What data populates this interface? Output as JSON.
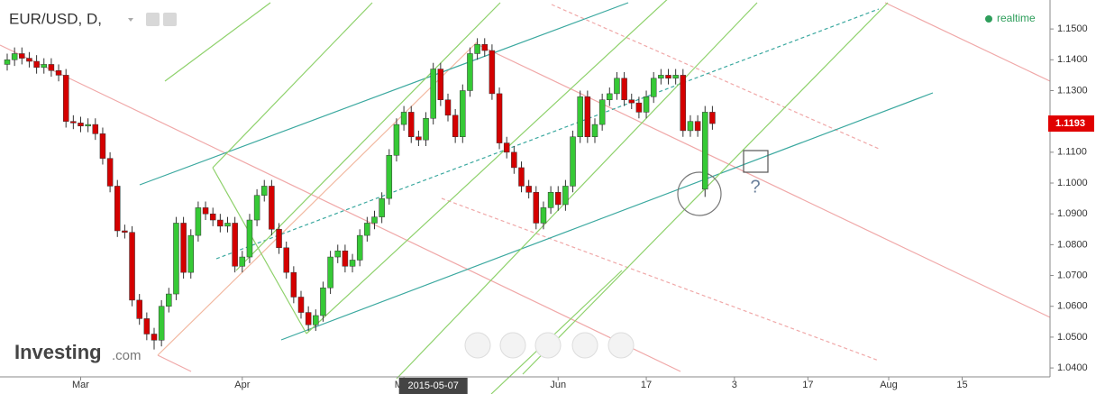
{
  "chart_data": {
    "type": "candlestick",
    "title": "EUR/USD, D,",
    "status": "realtime",
    "brand": "Investing",
    "brand_suffix": ".com",
    "annotation": "?",
    "up_color": "#36c936",
    "down_color": "#d40000",
    "x": [
      "2015-02-16",
      "2015-02-17",
      "2015-02-18",
      "2015-02-19",
      "2015-02-20",
      "2015-02-23",
      "2015-02-24",
      "2015-02-25",
      "2015-02-26",
      "2015-02-27",
      "2015-03-02",
      "2015-03-03",
      "2015-03-04",
      "2015-03-05",
      "2015-03-06",
      "2015-03-09",
      "2015-03-10",
      "2015-03-11",
      "2015-03-12",
      "2015-03-13",
      "2015-03-16",
      "2015-03-17",
      "2015-03-18",
      "2015-03-19",
      "2015-03-20",
      "2015-03-23",
      "2015-03-24",
      "2015-03-25",
      "2015-03-26",
      "2015-03-27",
      "2015-03-30",
      "2015-03-31",
      "2015-04-01",
      "2015-04-02",
      "2015-04-03",
      "2015-04-06",
      "2015-04-07",
      "2015-04-08",
      "2015-04-09",
      "2015-04-10",
      "2015-04-13",
      "2015-04-14",
      "2015-04-15",
      "2015-04-16",
      "2015-04-17",
      "2015-04-20",
      "2015-04-21",
      "2015-04-22",
      "2015-04-23",
      "2015-04-24",
      "2015-04-27",
      "2015-04-28",
      "2015-04-29",
      "2015-04-30",
      "2015-05-01",
      "2015-05-04",
      "2015-05-05",
      "2015-05-06",
      "2015-05-07",
      "2015-05-08",
      "2015-05-11",
      "2015-05-12",
      "2015-05-13",
      "2015-05-14",
      "2015-05-15",
      "2015-05-18",
      "2015-05-19",
      "2015-05-20",
      "2015-05-21",
      "2015-05-22",
      "2015-05-25",
      "2015-05-26",
      "2015-05-27",
      "2015-05-28",
      "2015-05-29",
      "2015-06-01",
      "2015-06-02",
      "2015-06-03",
      "2015-06-04",
      "2015-06-05",
      "2015-06-08",
      "2015-06-09",
      "2015-06-10",
      "2015-06-11",
      "2015-06-12",
      "2015-06-15",
      "2015-06-16",
      "2015-06-17",
      "2015-06-18",
      "2015-06-19",
      "2015-06-22",
      "2015-06-23",
      "2015-06-24",
      "2015-06-25",
      "2015-06-26",
      "2015-06-29",
      "2015-06-30"
    ],
    "open": [
      1.1385,
      1.14,
      1.142,
      1.1405,
      1.1395,
      1.1375,
      1.1385,
      1.1365,
      1.135,
      1.12,
      1.1195,
      1.1185,
      1.119,
      1.116,
      1.108,
      1.099,
      1.0845,
      1.084,
      1.062,
      1.056,
      1.051,
      1.049,
      1.06,
      1.064,
      1.087,
      1.071,
      1.083,
      1.092,
      1.09,
      1.088,
      1.086,
      1.087,
      1.073,
      1.076,
      1.088,
      1.096,
      1.099,
      1.085,
      1.079,
      1.071,
      1.063,
      1.058,
      1.054,
      1.057,
      1.066,
      1.076,
      1.078,
      1.073,
      1.075,
      1.083,
      1.087,
      1.089,
      1.095,
      1.109,
      1.119,
      1.123,
      1.115,
      1.114,
      1.121,
      1.137,
      1.127,
      1.122,
      1.115,
      1.13,
      1.142,
      1.145,
      1.143,
      1.129,
      1.113,
      1.11,
      1.105,
      1.099,
      1.097,
      1.087,
      1.092,
      1.097,
      1.093,
      1.099,
      1.115,
      1.128,
      1.115,
      1.119,
      1.127,
      1.129,
      1.134,
      1.127,
      1.126,
      1.123,
      1.128,
      1.134,
      1.135,
      1.134,
      1.135,
      1.117,
      1.12,
      1.098,
      1.123
    ],
    "high": [
      1.142,
      1.144,
      1.144,
      1.1425,
      1.1415,
      1.1405,
      1.1405,
      1.1385,
      1.137,
      1.122,
      1.1215,
      1.121,
      1.121,
      1.118,
      1.11,
      1.101,
      1.0865,
      1.086,
      1.064,
      1.058,
      1.053,
      1.062,
      1.066,
      1.089,
      1.089,
      1.085,
      1.094,
      1.094,
      1.092,
      1.09,
      1.089,
      1.089,
      1.078,
      1.09,
      1.098,
      1.101,
      1.101,
      1.087,
      1.081,
      1.073,
      1.065,
      1.06,
      1.059,
      1.068,
      1.078,
      1.08,
      1.08,
      1.077,
      1.085,
      1.089,
      1.091,
      1.097,
      1.111,
      1.121,
      1.125,
      1.125,
      1.117,
      1.123,
      1.139,
      1.139,
      1.129,
      1.124,
      1.132,
      1.144,
      1.147,
      1.147,
      1.145,
      1.131,
      1.115,
      1.112,
      1.107,
      1.101,
      1.099,
      1.094,
      1.099,
      1.099,
      1.101,
      1.117,
      1.13,
      1.13,
      1.121,
      1.129,
      1.131,
      1.136,
      1.136,
      1.129,
      1.128,
      1.13,
      1.136,
      1.137,
      1.137,
      1.137,
      1.137,
      1.122,
      1.122,
      1.125,
      1.125
    ],
    "low": [
      1.1365,
      1.138,
      1.1385,
      1.1375,
      1.1355,
      1.1355,
      1.1345,
      1.133,
      1.118,
      1.1175,
      1.1165,
      1.1165,
      1.114,
      1.106,
      1.097,
      1.0825,
      1.082,
      1.06,
      1.054,
      1.049,
      1.046,
      1.047,
      1.058,
      1.062,
      1.069,
      1.069,
      1.081,
      1.088,
      1.086,
      1.084,
      1.084,
      1.071,
      1.071,
      1.074,
      1.086,
      1.094,
      1.083,
      1.077,
      1.069,
      1.061,
      1.056,
      1.052,
      1.052,
      1.055,
      1.064,
      1.074,
      1.071,
      1.071,
      1.073,
      1.081,
      1.085,
      1.087,
      1.093,
      1.107,
      1.117,
      1.113,
      1.112,
      1.112,
      1.119,
      1.125,
      1.12,
      1.113,
      1.113,
      1.128,
      1.14,
      1.141,
      1.127,
      1.111,
      1.108,
      1.103,
      1.097,
      1.095,
      1.085,
      1.085,
      1.09,
      1.091,
      1.091,
      1.097,
      1.113,
      1.113,
      1.113,
      1.117,
      1.125,
      1.127,
      1.125,
      1.124,
      1.121,
      1.121,
      1.126,
      1.132,
      1.132,
      1.132,
      1.115,
      1.115,
      1.115,
      1.0955,
      1.1173
    ],
    "close": [
      1.14,
      1.142,
      1.1405,
      1.1395,
      1.1375,
      1.1385,
      1.1365,
      1.135,
      1.12,
      1.1195,
      1.1185,
      1.119,
      1.116,
      1.108,
      1.099,
      1.0845,
      1.084,
      1.062,
      1.056,
      1.051,
      1.049,
      1.06,
      1.064,
      1.087,
      1.071,
      1.083,
      1.092,
      1.09,
      1.088,
      1.086,
      1.087,
      1.073,
      1.076,
      1.088,
      1.096,
      1.099,
      1.085,
      1.079,
      1.071,
      1.063,
      1.058,
      1.054,
      1.057,
      1.066,
      1.076,
      1.078,
      1.073,
      1.075,
      1.083,
      1.087,
      1.089,
      1.095,
      1.109,
      1.119,
      1.123,
      1.115,
      1.114,
      1.121,
      1.137,
      1.127,
      1.122,
      1.115,
      1.13,
      1.142,
      1.145,
      1.143,
      1.129,
      1.113,
      1.11,
      1.105,
      1.099,
      1.097,
      1.087,
      1.092,
      1.097,
      1.093,
      1.099,
      1.115,
      1.128,
      1.115,
      1.119,
      1.127,
      1.129,
      1.134,
      1.127,
      1.126,
      1.123,
      1.128,
      1.134,
      1.135,
      1.134,
      1.135,
      1.117,
      1.12,
      1.117,
      1.123,
      1.1193
    ],
    "last_price": 1.1193,
    "crosshair_date": "2015-05-07",
    "ylim": [
      1.0371,
      1.1594
    ],
    "yticks": [
      {
        "value": 1.04,
        "label": "1.0400"
      },
      {
        "value": 1.05,
        "label": "1.0500"
      },
      {
        "value": 1.06,
        "label": "1.0600"
      },
      {
        "value": 1.07,
        "label": "1.0700"
      },
      {
        "value": 1.08,
        "label": "1.0800"
      },
      {
        "value": 1.09,
        "label": "1.0900"
      },
      {
        "value": 1.1,
        "label": "1.1000"
      },
      {
        "value": 1.11,
        "label": "1.1100"
      },
      {
        "value": 1.12,
        "label": "1.1200"
      },
      {
        "value": 1.13,
        "label": "1.1300"
      },
      {
        "value": 1.14,
        "label": "1.1400"
      },
      {
        "value": 1.15,
        "label": "1.1500"
      }
    ],
    "xticks": [
      {
        "value": "2015-03-02",
        "label": "Mar"
      },
      {
        "value": "2015-04-01",
        "label": "Apr"
      },
      {
        "value": "2015-05-01",
        "label": "May"
      },
      {
        "value": "2015-06-01",
        "label": "Jun"
      },
      {
        "value": "2015-06-17",
        "label": "17"
      },
      {
        "value": "2015-07-03",
        "label": "3"
      },
      {
        "value": "2015-07-17",
        "label": "17"
      },
      {
        "value": "2015-08-03",
        "label": "Aug"
      },
      {
        "value": "2015-08-15",
        "label": "15"
      }
    ],
    "grid": false
  }
}
